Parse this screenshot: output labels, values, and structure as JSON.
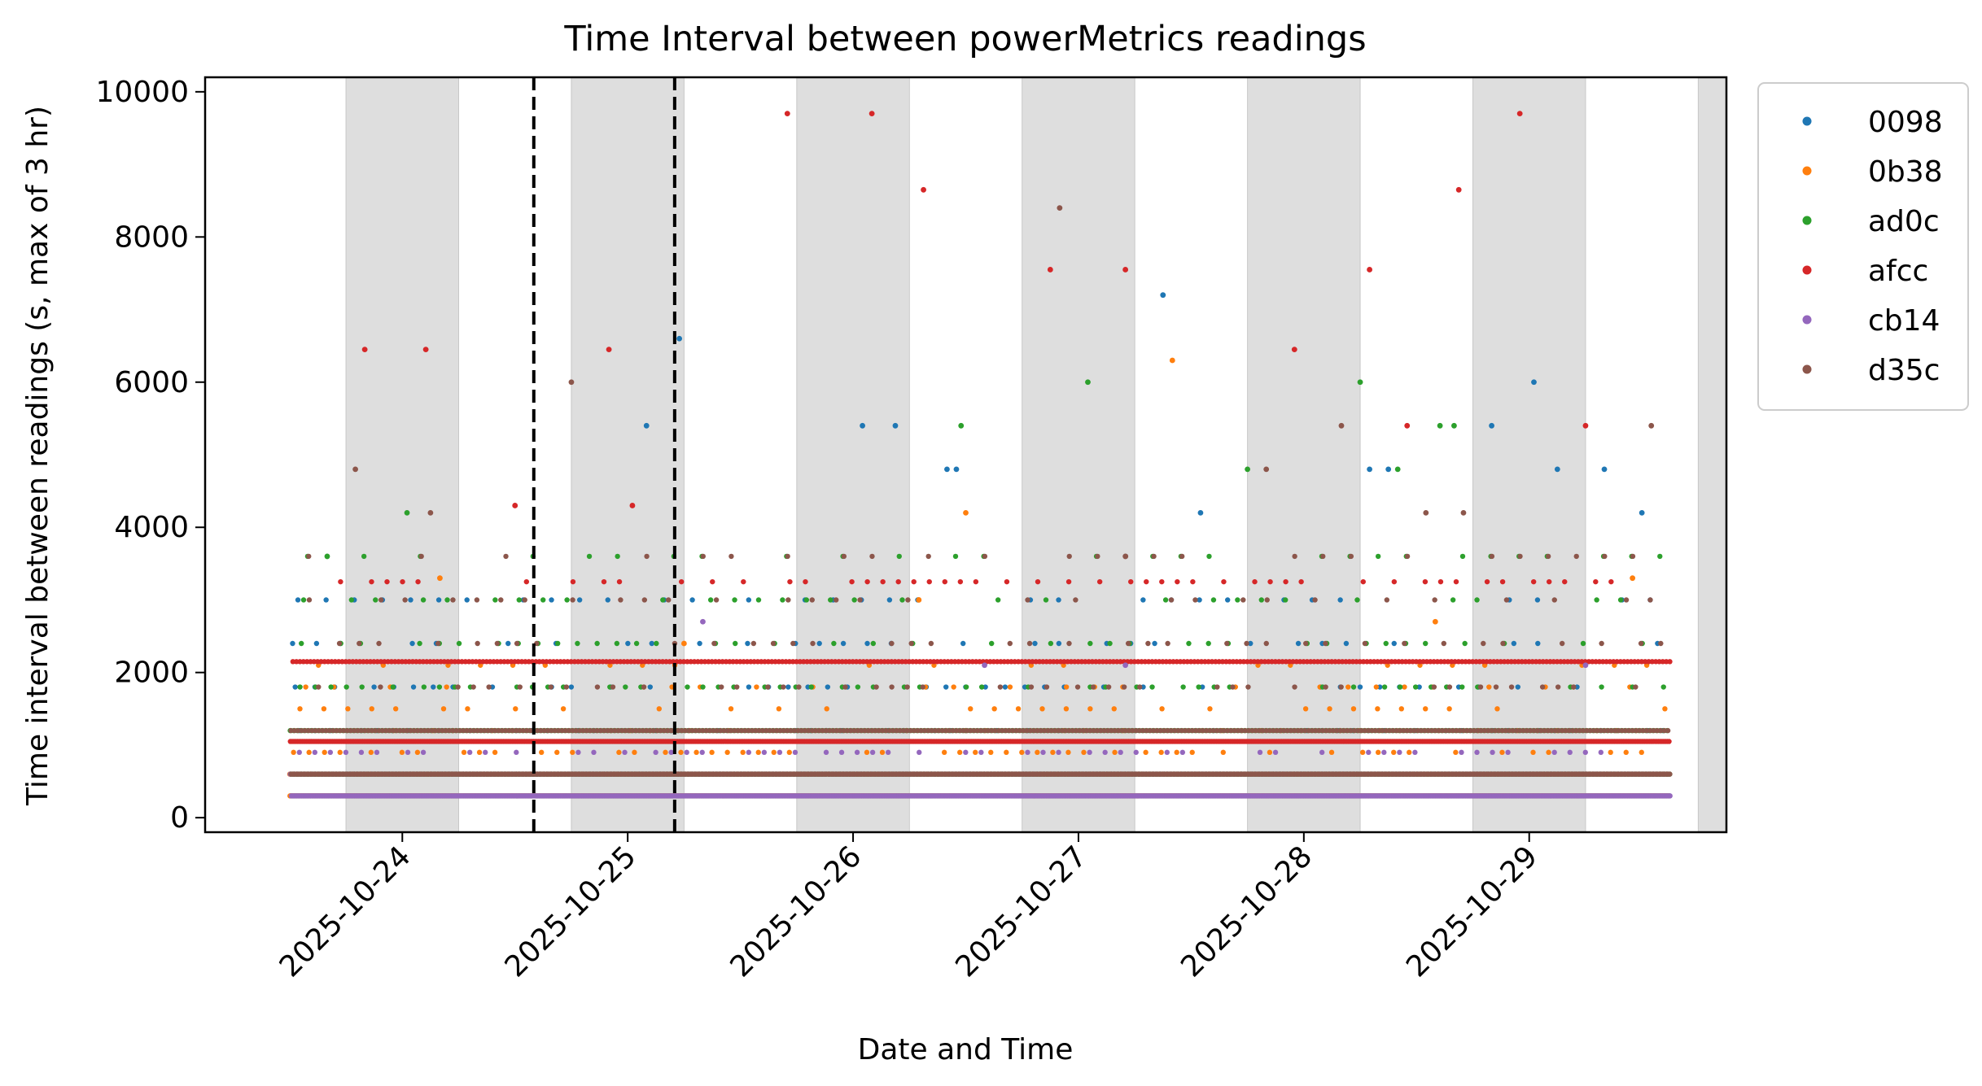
{
  "chart_data": {
    "type": "scatter",
    "title": "Time Interval between powerMetrics readings",
    "xlabel": "Date and Time",
    "ylabel": "Time interval between readings (s, max of 3 hr)",
    "xlim": [
      "2025-10-23 03:00",
      "2025-10-29 21:00"
    ],
    "ylim": [
      -200,
      10200
    ],
    "x_ticks": [
      "2025-10-24",
      "2025-10-25",
      "2025-10-26",
      "2025-10-27",
      "2025-10-28",
      "2025-10-29"
    ],
    "y_ticks": [
      0,
      2000,
      4000,
      6000,
      8000,
      10000
    ],
    "legend_position": "outside top-right",
    "night_shading": [
      [
        "2025-10-23 18:00",
        "2025-10-24 06:00"
      ],
      [
        "2025-10-24 18:00",
        "2025-10-25 06:00"
      ],
      [
        "2025-10-25 18:00",
        "2025-10-26 06:00"
      ],
      [
        "2025-10-26 18:00",
        "2025-10-27 06:00"
      ],
      [
        "2025-10-27 18:00",
        "2025-10-28 06:00"
      ],
      [
        "2025-10-28 18:00",
        "2025-10-29 06:00"
      ],
      [
        "2025-10-29 18:00",
        "2025-10-29 21:00"
      ]
    ],
    "vlines": [
      "2025-10-24 14:00",
      "2025-10-25 05:00"
    ],
    "x_range_of_points": [
      "2025-10-23 12:00",
      "2025-10-29 15:00"
    ],
    "series": [
      {
        "name": "0098",
        "color": "#1f77b4",
        "base_levels": [
          300,
          600,
          1200,
          1800,
          2400,
          3000
        ],
        "outliers": [
          [
            "2025-10-25 02:00",
            5400
          ],
          [
            "2025-10-25 05:30",
            6600
          ],
          [
            "2025-10-26 01:00",
            5400
          ],
          [
            "2025-10-26 04:30",
            5400
          ],
          [
            "2025-10-26 10:00",
            4800
          ],
          [
            "2025-10-26 11:00",
            4800
          ],
          [
            "2025-10-27 09:00",
            7200
          ],
          [
            "2025-10-27 13:00",
            4200
          ],
          [
            "2025-10-28 07:00",
            4800
          ],
          [
            "2025-10-28 09:00",
            4800
          ],
          [
            "2025-10-28 20:00",
            5400
          ],
          [
            "2025-10-29 00:30",
            6000
          ],
          [
            "2025-10-29 03:00",
            4800
          ],
          [
            "2025-10-29 08:00",
            4800
          ],
          [
            "2025-10-29 12:00",
            4200
          ]
        ]
      },
      {
        "name": "0b38",
        "color": "#ff7f0e",
        "base_levels": [
          300,
          600,
          900,
          1200,
          1500,
          1800,
          2100
        ],
        "outliers": [
          [
            "2025-10-24 04:00",
            3300
          ],
          [
            "2025-10-25 06:00",
            2400
          ],
          [
            "2025-10-26 07:00",
            3000
          ],
          [
            "2025-10-26 12:00",
            4200
          ],
          [
            "2025-10-27 10:00",
            6300
          ],
          [
            "2025-10-28 14:00",
            2700
          ],
          [
            "2025-10-29 11:00",
            3300
          ]
        ]
      },
      {
        "name": "ad0c",
        "color": "#2ca02c",
        "base_levels": [
          600,
          1200,
          1800,
          2400,
          3000,
          3600
        ],
        "outliers": [
          [
            "2025-10-23 16:00",
            3600
          ],
          [
            "2025-10-24 00:30",
            4200
          ],
          [
            "2025-10-26 11:30",
            5400
          ],
          [
            "2025-10-27 01:00",
            6000
          ],
          [
            "2025-10-27 18:00",
            4800
          ],
          [
            "2025-10-28 06:00",
            6000
          ],
          [
            "2025-10-28 10:00",
            4800
          ],
          [
            "2025-10-28 14:30",
            5400
          ],
          [
            "2025-10-28 16:00",
            5400
          ]
        ]
      },
      {
        "name": "afcc",
        "color": "#d62728",
        "base_levels": [
          1050,
          2150,
          3250
        ],
        "outliers": [
          [
            "2025-10-23 20:00",
            6450
          ],
          [
            "2025-10-24 02:30",
            6450
          ],
          [
            "2025-10-24 12:00",
            4300
          ],
          [
            "2025-10-24 22:00",
            6450
          ],
          [
            "2025-10-25 00:30",
            4300
          ],
          [
            "2025-10-25 17:00",
            9700
          ],
          [
            "2025-10-26 02:00",
            9700
          ],
          [
            "2025-10-26 07:30",
            8650
          ],
          [
            "2025-10-26 21:00",
            7550
          ],
          [
            "2025-10-27 05:00",
            7550
          ],
          [
            "2025-10-27 23:00",
            6450
          ],
          [
            "2025-10-28 07:00",
            7550
          ],
          [
            "2025-10-28 11:00",
            5400
          ],
          [
            "2025-10-28 16:30",
            8650
          ],
          [
            "2025-10-28 23:00",
            9700
          ],
          [
            "2025-10-29 06:00",
            5400
          ]
        ]
      },
      {
        "name": "cb14",
        "color": "#9467bd",
        "base_levels": [
          300,
          600,
          900
        ],
        "outliers": [
          [
            "2025-10-25 08:00",
            2700
          ],
          [
            "2025-10-26 14:00",
            2100
          ],
          [
            "2025-10-27 05:00",
            2100
          ],
          [
            "2025-10-29 06:00",
            2100
          ]
        ]
      },
      {
        "name": "d35c",
        "color": "#8c564b",
        "base_levels": [
          600,
          1200,
          1800,
          2400,
          3000,
          3600
        ],
        "outliers": [
          [
            "2025-10-23 19:00",
            4800
          ],
          [
            "2025-10-24 03:00",
            4200
          ],
          [
            "2025-10-24 18:00",
            6000
          ],
          [
            "2025-10-26 22:00",
            8400
          ],
          [
            "2025-10-27 05:00",
            3600
          ],
          [
            "2025-10-27 20:00",
            4800
          ],
          [
            "2025-10-28 04:00",
            5400
          ],
          [
            "2025-10-28 13:00",
            4200
          ],
          [
            "2025-10-28 17:00",
            4200
          ],
          [
            "2025-10-29 13:00",
            5400
          ]
        ]
      }
    ]
  }
}
